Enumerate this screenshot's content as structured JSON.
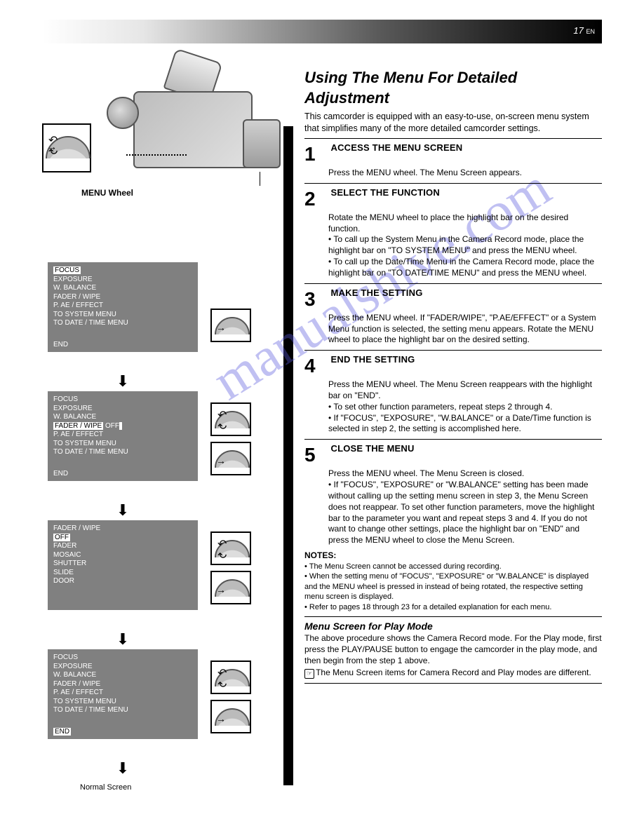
{
  "page_number_top": "17",
  "watermark": "manualshive.com",
  "camera_caption": "MENU Wheel",
  "normal_screen_label": "Normal Screen",
  "icon_names": {
    "press": "press-dial-icon",
    "rotate": "rotate-dial-icon",
    "press_rotate": "press-rotate-dial-icon"
  },
  "menu_screens": [
    {
      "lines": [
        {
          "text": "FOCUS",
          "highlight": true,
          "segments": null
        },
        {
          "text": "EXPOSURE",
          "highlight": false
        },
        {
          "text": "W. BALANCE",
          "highlight": false
        },
        {
          "text": "FADER / WIPE",
          "highlight": false
        },
        {
          "text": "P. AE / EFFECT",
          "highlight": false
        },
        {
          "text": "TO SYSTEM MENU",
          "highlight": false
        },
        {
          "text": "TO DATE / TIME MENU",
          "highlight": false
        }
      ],
      "footer": "END",
      "ops": [
        "press"
      ]
    },
    {
      "lines": [
        {
          "text": "FOCUS",
          "highlight": false
        },
        {
          "text": "EXPOSURE",
          "highlight": false
        },
        {
          "text": "W. BALANCE",
          "highlight": false
        },
        {
          "segments": [
            {
              "t": "FADER / WIPE",
              "hl": true
            },
            {
              "t": " OFF",
              "hl": false
            },
            {
              "t": " ",
              "hl": false
            },
            {
              "t": "",
              "hl": true
            }
          ]
        },
        {
          "text": "P. AE / EFFECT",
          "highlight": false
        },
        {
          "text": "TO SYSTEM MENU",
          "highlight": false
        },
        {
          "text": "TO DATE / TIME MENU",
          "highlight": false
        }
      ],
      "footer": "END",
      "ops": [
        "rotate",
        "press"
      ]
    },
    {
      "lines": [
        {
          "text": "FADER / WIPE",
          "highlight": false
        },
        {
          "text": "",
          "highlight": false
        },
        {
          "text": "  OFF",
          "highlight": true
        },
        {
          "text": "  FADER",
          "highlight": false
        },
        {
          "text": "  MOSAIC",
          "highlight": false
        },
        {
          "text": "  SHUTTER",
          "highlight": false
        },
        {
          "text": "  SLIDE",
          "highlight": false
        },
        {
          "text": "  DOOR",
          "highlight": false
        }
      ],
      "footer": "",
      "ops": [
        "rotate",
        "press"
      ]
    },
    {
      "lines": [
        {
          "text": "FOCUS",
          "highlight": false
        },
        {
          "text": "EXPOSURE",
          "highlight": false
        },
        {
          "text": "W. BALANCE",
          "highlight": false
        },
        {
          "text": "FADER / WIPE",
          "highlight": false
        },
        {
          "text": "P. AE / EFFECT",
          "highlight": false
        },
        {
          "text": "TO SYSTEM MENU",
          "highlight": false
        },
        {
          "text": "TO DATE / TIME MENU",
          "highlight": false
        }
      ],
      "footer_hl": "END",
      "ops": [
        "rotate",
        "press"
      ]
    }
  ],
  "right": {
    "title": "Using The Menu For Detailed Adjustment",
    "purpose": "This camcorder is equipped with an easy-to-use, on-screen menu system that simplifies many of the more detailed camcorder settings.",
    "step1": {
      "num": "1",
      "head": "ACCESS THE MENU SCREEN",
      "body": "Press the MENU wheel. The Menu Screen appears."
    },
    "step2": {
      "num": "2",
      "head": "SELECT THE FUNCTION",
      "body": "Rotate the MENU wheel to place the highlight bar on the desired function.",
      "bullets": [
        "To call up the System Menu in the Camera Record mode, place the highlight bar on \"TO SYSTEM MENU\" and press the MENU wheel.",
        "To call up the Date/Time Menu in the Camera Record mode, place the highlight bar on \"TO DATE/TIME MENU\" and press the MENU wheel."
      ]
    },
    "step3": {
      "num": "3",
      "head": "MAKE THE SETTING",
      "body": "Press the MENU wheel. If \"FADER/WIPE\", \"P.AE/EFFECT\" or a System Menu function is selected, the setting menu appears. Rotate the MENU wheel to place the highlight bar on the desired setting."
    },
    "step4": {
      "num": "4",
      "head": "END THE SETTING",
      "body": "Press the MENU wheel. The Menu Screen reappears with the highlight bar on \"END\".",
      "bullets": [
        "To set other function parameters, repeat steps 2 through 4.",
        "If \"FOCUS\", \"EXPOSURE\", \"W.BALANCE\" or a Date/Time function is selected in step 2, the setting is accomplished here."
      ]
    },
    "step5": {
      "num": "5",
      "head": "CLOSE THE MENU",
      "body": "Press the MENU wheel. The Menu Screen is closed.",
      "bullets": [
        "If \"FOCUS\", \"EXPOSURE\" or \"W.BALANCE\" setting has been made without calling up the setting menu screen in step 3, the Menu Screen does not reappear. To set other function parameters, move the highlight bar to the parameter you want and repeat steps 3 and 4. If you do not want to change other settings, place the highlight bar on \"END\" and press the MENU wheel to close the Menu Screen."
      ]
    },
    "notes_head": "NOTES:",
    "notes": [
      "The Menu Screen cannot be accessed during recording.",
      "When the setting menu of \"FOCUS\", \"EXPOSURE\" or \"W.BALANCE\" is displayed and the MENU wheel is pressed in instead of being rotated, the respective setting menu screen is displayed.",
      "Refer to pages 18 through 23 for a detailed explanation for each menu."
    ],
    "play_head": "Menu Screen for Play Mode",
    "play_body1": "The above procedure shows the Camera Record mode. For the Play mode, first press the PLAY/PAUSE button to engage the camcorder in the play mode, and then begin from the step 1 above.",
    "play_body2": "The Menu Screen items for Camera Record and Play modes are different."
  }
}
